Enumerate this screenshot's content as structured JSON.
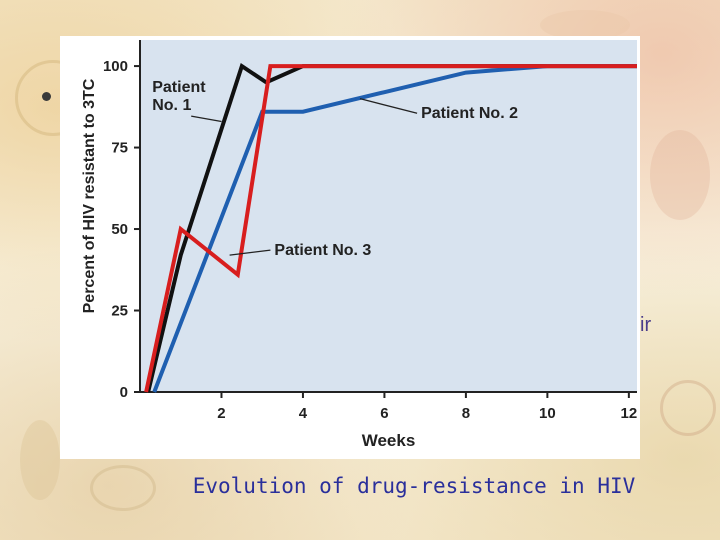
{
  "caption": "Evolution of drug-resistance in HIV",
  "slide_fragment": "ir",
  "chart_data": {
    "type": "line",
    "title": "",
    "xlabel": "Weeks",
    "ylabel": "Percent of HIV resistant to 3TC",
    "xlim": [
      0,
      12.2
    ],
    "ylim": [
      0,
      108
    ],
    "x_ticks": [
      2,
      4,
      6,
      8,
      10,
      12
    ],
    "y_ticks": [
      0,
      25,
      50,
      75,
      100
    ],
    "grid": false,
    "colors": {
      "plot_bg": "#d8e3ef",
      "axis": "#222222"
    },
    "series": [
      {
        "name": "Patient No. 1",
        "color": "#111111",
        "x": [
          0.2,
          1.0,
          2.5,
          3.1,
          4.0,
          12.2
        ],
        "y": [
          0,
          42,
          100,
          95,
          100,
          100
        ]
      },
      {
        "name": "Patient No. 2",
        "color": "#1f5fb0",
        "x": [
          0.35,
          3.0,
          4.0,
          6.0,
          8.0,
          10.0,
          12.2
        ],
        "y": [
          0,
          86,
          86,
          92,
          98,
          100,
          100
        ]
      },
      {
        "name": "Patient No. 3",
        "color": "#d81e1e",
        "x": [
          0.15,
          1.0,
          2.4,
          3.2,
          12.2
        ],
        "y": [
          0,
          50,
          36,
          100,
          100
        ]
      }
    ],
    "annotations": [
      {
        "series": 0,
        "lines": [
          "Patient",
          "No. 1"
        ],
        "text_x": 0.3,
        "text_y": 92,
        "ptr_x": 2.0,
        "ptr_y": 83
      },
      {
        "series": 1,
        "lines": [
          "Patient No. 2"
        ],
        "text_x": 6.9,
        "text_y": 84,
        "ptr_x": 5.4,
        "ptr_y": 90
      },
      {
        "series": 2,
        "lines": [
          "Patient No. 3"
        ],
        "text_x": 3.3,
        "text_y": 42,
        "ptr_x": 2.2,
        "ptr_y": 42
      }
    ]
  }
}
